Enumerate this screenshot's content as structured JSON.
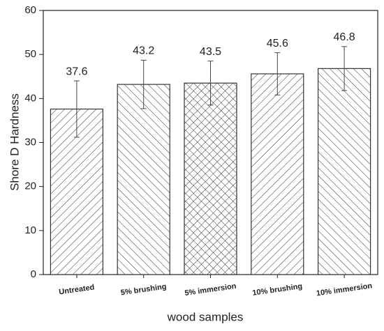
{
  "chart_data": {
    "type": "bar",
    "x_label": "wood samples",
    "y_label": "Shore D Hardness",
    "categories": [
      "Untreated",
      "5% brushing",
      "5% immersion",
      "10% brushing",
      "10% immersion"
    ],
    "values": [
      37.6,
      43.2,
      43.5,
      45.6,
      46.8
    ],
    "errors": [
      6.4,
      5.5,
      5.0,
      4.8,
      5.0
    ],
    "hatch": [
      "/",
      "\\",
      "x",
      "/",
      "\\"
    ],
    "color": "#333333",
    "ylim": [
      0,
      60
    ],
    "yticks": [
      0,
      10,
      20,
      30,
      40,
      50,
      60
    ],
    "grid": false
  }
}
